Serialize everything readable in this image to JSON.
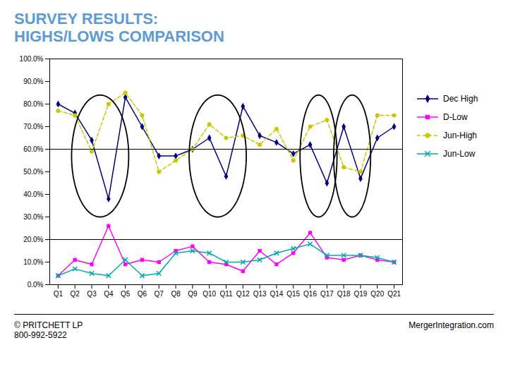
{
  "chart_data": {
    "type": "line",
    "title": "SURVEY RESULTS:\nHIGHS/LOWS COMPARISON",
    "categories": [
      "Q1",
      "Q2",
      "Q3",
      "Q4",
      "Q5",
      "Q6",
      "Q7",
      "Q8",
      "Q9",
      "Q10",
      "Q11",
      "Q12",
      "Q13",
      "Q14",
      "Q15",
      "Q16",
      "Q17",
      "Q18",
      "Q19",
      "Q20",
      "Q21"
    ],
    "series": [
      {
        "name": "Dec High",
        "color": "#000080",
        "marker": "diamond",
        "line_style": "solid",
        "values": [
          80,
          76,
          64,
          38,
          83,
          70,
          57,
          57,
          60,
          65,
          48,
          79,
          66,
          63,
          58,
          62,
          45,
          70,
          47,
          65,
          70
        ]
      },
      {
        "name": "D-Low",
        "color": "#FF00FF",
        "marker": "square",
        "line_style": "solid",
        "values": [
          4,
          11,
          9,
          26,
          9,
          11,
          10,
          15,
          17,
          10,
          9,
          6,
          15,
          9,
          14,
          23,
          12,
          11,
          13,
          11,
          10
        ]
      },
      {
        "name": "Jun-High",
        "color": "#C8C800",
        "marker": "circle",
        "line_style": "dashed",
        "values": [
          77,
          75,
          59,
          80,
          85,
          75,
          50,
          55,
          60,
          71,
          65,
          66,
          62,
          69,
          55,
          70,
          73,
          52,
          50,
          75,
          75
        ]
      },
      {
        "name": "Jun-Low",
        "color": "#00AAAA",
        "marker": "x",
        "line_style": "solid",
        "values": [
          4,
          7,
          5,
          4,
          11,
          4,
          5,
          14,
          15,
          14,
          10,
          10,
          11,
          14,
          16,
          18,
          13,
          13,
          13,
          12,
          10
        ]
      }
    ],
    "hlines": [
      60.0,
      20.0
    ],
    "ellipses": [
      {
        "cx": 2.5,
        "cy": 57,
        "rx": 1.7,
        "ry": 27
      },
      {
        "cx": 9.5,
        "cy": 57,
        "rx": 1.7,
        "ry": 27
      },
      {
        "cx": 15.5,
        "cy": 57,
        "rx": 1.1,
        "ry": 27
      },
      {
        "cx": 17.5,
        "cy": 57,
        "rx": 1.1,
        "ry": 27
      }
    ],
    "ylim": [
      0,
      100
    ],
    "yticks": [
      {
        "value": 0,
        "label": "0.0%"
      },
      {
        "value": 10,
        "label": "10.0%"
      },
      {
        "value": 20,
        "label": "20.0%"
      },
      {
        "value": 30,
        "label": "30.0%"
      },
      {
        "value": 40,
        "label": "40.0%"
      },
      {
        "value": 50,
        "label": "50.0%"
      },
      {
        "value": 60,
        "label": "60.0%"
      },
      {
        "value": 70,
        "label": "70.0%"
      },
      {
        "value": 80,
        "label": "80.0%"
      },
      {
        "value": 90,
        "label": "90.0%"
      },
      {
        "value": 100,
        "label": "100.0%"
      }
    ],
    "grid": false,
    "legend": "right",
    "annotations": [
      "© PRITCHETT LP\n800-992-5922",
      "MergerIntegration.com"
    ]
  }
}
